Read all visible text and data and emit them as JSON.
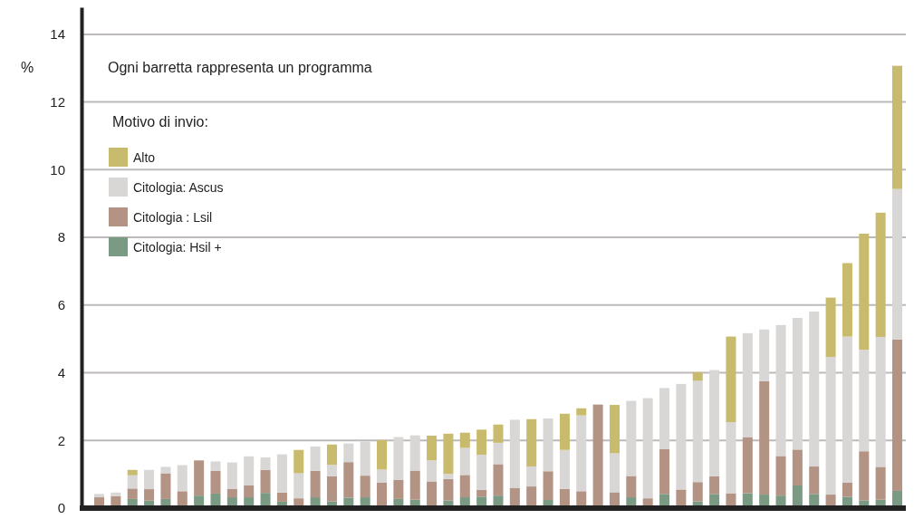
{
  "chart_data": {
    "type": "bar",
    "stacked": true,
    "ylabel": "%",
    "legend_title": "Motivo di invio:",
    "annotations": [
      "Ogni barretta rappresenta un programma"
    ],
    "categories": [
      null,
      null,
      null,
      null,
      null,
      null,
      null,
      null,
      null,
      null,
      null,
      null,
      null,
      null,
      null,
      null,
      null,
      null,
      null,
      null,
      null,
      null,
      null,
      null,
      null,
      null,
      null,
      null,
      null,
      null,
      null,
      null,
      null,
      null,
      null,
      null,
      null,
      null,
      null,
      null,
      null,
      null,
      null,
      null,
      null,
      null,
      null,
      null,
      null
    ],
    "ylim": [
      0,
      14.8
    ],
    "yticks": [
      0,
      2,
      4,
      6,
      8,
      10,
      12,
      14
    ],
    "grid": "y",
    "legend": "top left",
    "series": [
      {
        "name": "Citologia: Hsil +",
        "color": "#7b9a84",
        "values": [
          0,
          0,
          0.27,
          0.22,
          0.27,
          0,
          0.37,
          0.43,
          0.32,
          0.32,
          0.45,
          0.19,
          0,
          0.32,
          0.2,
          0.31,
          0.32,
          0,
          0.27,
          0.25,
          0,
          0.23,
          0.32,
          0.34,
          0.37,
          0,
          0,
          0.24,
          0,
          0,
          0,
          0,
          0.32,
          0,
          0.42,
          0,
          0.2,
          0.42,
          0,
          0.44,
          0.4,
          0.37,
          0.67,
          0.42,
          0,
          0.33,
          0.23,
          0.25,
          0.51
        ]
      },
      {
        "name": "Citologia : Lsil",
        "color": "#b39383",
        "values": [
          0.32,
          0.35,
          0.31,
          0.34,
          0.76,
          0.5,
          1.04,
          0.67,
          0.25,
          0.35,
          0.68,
          0.27,
          0.29,
          0.78,
          0.74,
          1.05,
          0.64,
          0.76,
          0.57,
          0.86,
          0.79,
          0.63,
          0.66,
          0.2,
          0.93,
          0.6,
          0.64,
          0.85,
          0.57,
          0.5,
          3.06,
          0.47,
          0.63,
          0.29,
          1.32,
          0.55,
          0.57,
          0.52,
          0.44,
          1.66,
          3.35,
          1.17,
          1.06,
          0.81,
          0.4,
          0.43,
          1.45,
          0.97,
          4.47
        ]
      },
      {
        "name": "Citologia: Ascus",
        "color": "#d9d7d6",
        "values": [
          0.1,
          0.11,
          0.39,
          0.57,
          0.19,
          0.77,
          0,
          0.28,
          0.78,
          0.86,
          0.37,
          1.13,
          0.74,
          0.72,
          0.34,
          0.55,
          1.01,
          0.38,
          1.26,
          1.04,
          0.62,
          0.15,
          0.8,
          1.04,
          0.63,
          2.01,
          0.59,
          1.56,
          1.15,
          2.24,
          0,
          1.15,
          2.22,
          2.96,
          1.81,
          3.12,
          2.99,
          3.14,
          2.1,
          3.07,
          1.53,
          3.87,
          3.89,
          4.58,
          4.07,
          4.31,
          3.0,
          3.84,
          4.45
        ]
      },
      {
        "name": "Alto",
        "color": "#c8bb6e",
        "values": [
          0,
          0,
          0.16,
          0,
          0,
          0,
          0,
          0,
          0,
          0,
          0,
          0,
          0.69,
          0,
          0.6,
          0,
          0,
          0.87,
          0,
          0,
          0.73,
          1.19,
          0.45,
          0.74,
          0.54,
          0,
          1.4,
          0,
          1.07,
          0.21,
          0,
          1.43,
          0,
          0,
          0,
          0,
          0.26,
          0,
          2.53,
          0,
          0,
          0,
          0,
          0,
          1.75,
          2.17,
          3.43,
          3.67,
          3.64
        ]
      }
    ]
  }
}
